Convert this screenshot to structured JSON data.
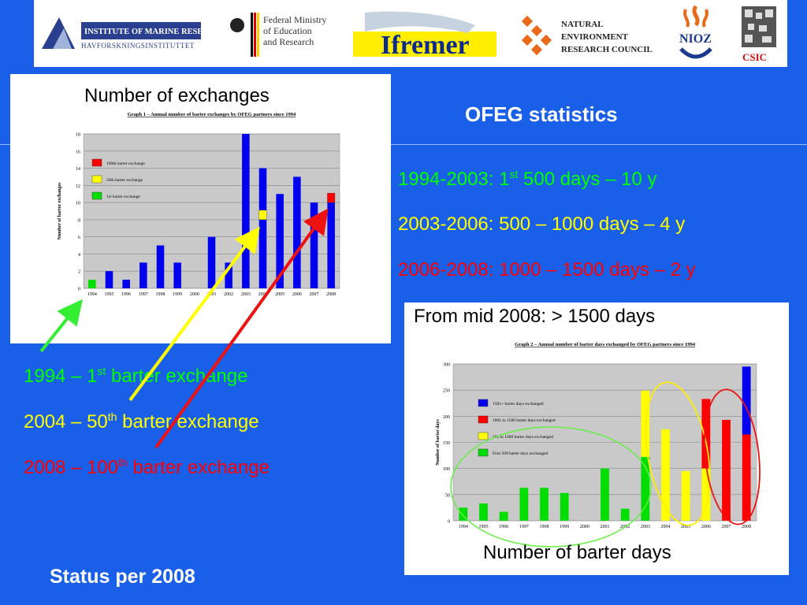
{
  "logos": {
    "imr": {
      "name": "imr-logo",
      "line1": "INSTITUTE OF MARINE RESEARCH",
      "line2": "HAVFORSKNINGSINSTITUTTET"
    },
    "bmbf": {
      "name": "bmbf-logo",
      "line1": "Federal Ministry",
      "line2": "of Education",
      "line3": "and Research"
    },
    "ifremer": {
      "name": "ifremer-logo",
      "text": "Ifremer"
    },
    "nerc": {
      "name": "nerc-logo",
      "line1": "NATURAL",
      "line2": "ENVIRONMENT",
      "line3": "RESEARCH COUNCIL"
    },
    "nioz": {
      "name": "nioz-logo",
      "text": "NIOZ"
    },
    "csic": {
      "name": "csic-logo",
      "text": "CSIC"
    }
  },
  "title": "OFEG statistics",
  "stats": [
    {
      "pre": "1994-2003: 1",
      "sup": "st",
      "post": " 500 days – 10 y",
      "color": "#00ff00"
    },
    {
      "pre": "2003-2006: 500 – 1000 days – 4 y",
      "sup": "",
      "post": "",
      "color": "#ffff00"
    },
    {
      "pre": "2006-2008: 1000 – 1500 days – 2 y",
      "sup": "",
      "post": "",
      "color": "#ff0000"
    }
  ],
  "events": [
    {
      "pre": "1994 – 1",
      "sup": "st",
      "post": " barter exchange",
      "color": "#00ff00"
    },
    {
      "pre": "2004 – 50",
      "sup": "th",
      "post": " barter exchange",
      "color": "#ffff00"
    },
    {
      "pre": "2008 – 100",
      "sup": "th",
      "post": " barter exchange",
      "color": "#ff0000"
    }
  ],
  "footer": "Status per 2008",
  "panel1_label": "Number of exchanges",
  "panel2_label_top": "From mid 2008: > 1500 days",
  "panel2_label_bottom": "Number of barter days",
  "chart_data": [
    {
      "type": "bar",
      "title": "Graph 1 – Annual number of barter exchanges by OFEG partners since 1994",
      "ylabel": "Number of barter exchanges",
      "categories": [
        "1994",
        "1995",
        "1996",
        "1997",
        "1998",
        "1999",
        "2000",
        "2001",
        "2002",
        "2003",
        "2004",
        "2005",
        "2006",
        "2007",
        "2008"
      ],
      "ylim": [
        0,
        18
      ],
      "yticks": [
        0,
        2,
        4,
        6,
        8,
        10,
        12,
        14,
        16,
        18
      ],
      "grid": true,
      "legend_position": "top-left",
      "values": [
        1,
        2,
        1,
        3,
        5,
        3,
        0,
        6,
        3,
        18,
        14,
        11,
        13,
        10,
        10
      ],
      "bar_colors": [
        "#00dd00",
        "#0000ee",
        "#0000ee",
        "#0000ee",
        "#0000ee",
        "#0000ee",
        "#0000ee",
        "#0000ee",
        "#0000ee",
        "#0000ee",
        "#0000ee",
        "#0000ee",
        "#0000ee",
        "#0000ee",
        "#0000ee"
      ],
      "markers": [
        {
          "category": "2004",
          "value": 8,
          "color": "#ffff00"
        },
        {
          "category": "2008",
          "value": 10,
          "color": "#ff0000"
        }
      ],
      "legend": [
        {
          "label": "100th barter exchange",
          "color": "#ff0000"
        },
        {
          "label": "50th barter exchange",
          "color": "#ffff00"
        },
        {
          "label": "1st barter exchange",
          "color": "#00dd00"
        }
      ]
    },
    {
      "type": "bar",
      "stacked": true,
      "title": "Graph 2 – Annual number of barter days exchanged by OFEG partners since 1994",
      "ylabel": "Number of barter days",
      "categories": [
        "1994",
        "1995",
        "1996",
        "1997",
        "1998",
        "1999",
        "2000",
        "2001",
        "2002",
        "2003",
        "2004",
        "2005",
        "2006",
        "2007",
        "2008"
      ],
      "ylim": [
        0,
        300
      ],
      "yticks": [
        0,
        50,
        100,
        150,
        200,
        250,
        300
      ],
      "grid": true,
      "legend_position": "top-left",
      "series": [
        {
          "name": "First 500 barter days exchanged",
          "color": "#00dd00",
          "values": [
            25,
            33,
            17,
            63,
            63,
            53,
            0,
            100,
            23,
            122,
            0,
            0,
            0,
            0,
            0
          ]
        },
        {
          "name": "501 to 1000 barter days exchanged",
          "color": "#ffff00",
          "values": [
            0,
            0,
            0,
            0,
            0,
            0,
            0,
            0,
            0,
            127,
            175,
            95,
            100,
            0,
            0
          ]
        },
        {
          "name": "1001 to 1500 barter days exchanged",
          "color": "#ff0000",
          "values": [
            0,
            0,
            0,
            0,
            0,
            0,
            0,
            0,
            0,
            0,
            0,
            0,
            133,
            193,
            165
          ]
        },
        {
          "name": "1501+ barter days exchanged",
          "color": "#0000ee",
          "values": [
            0,
            0,
            0,
            0,
            0,
            0,
            0,
            0,
            0,
            0,
            0,
            0,
            0,
            0,
            130
          ]
        }
      ]
    }
  ]
}
